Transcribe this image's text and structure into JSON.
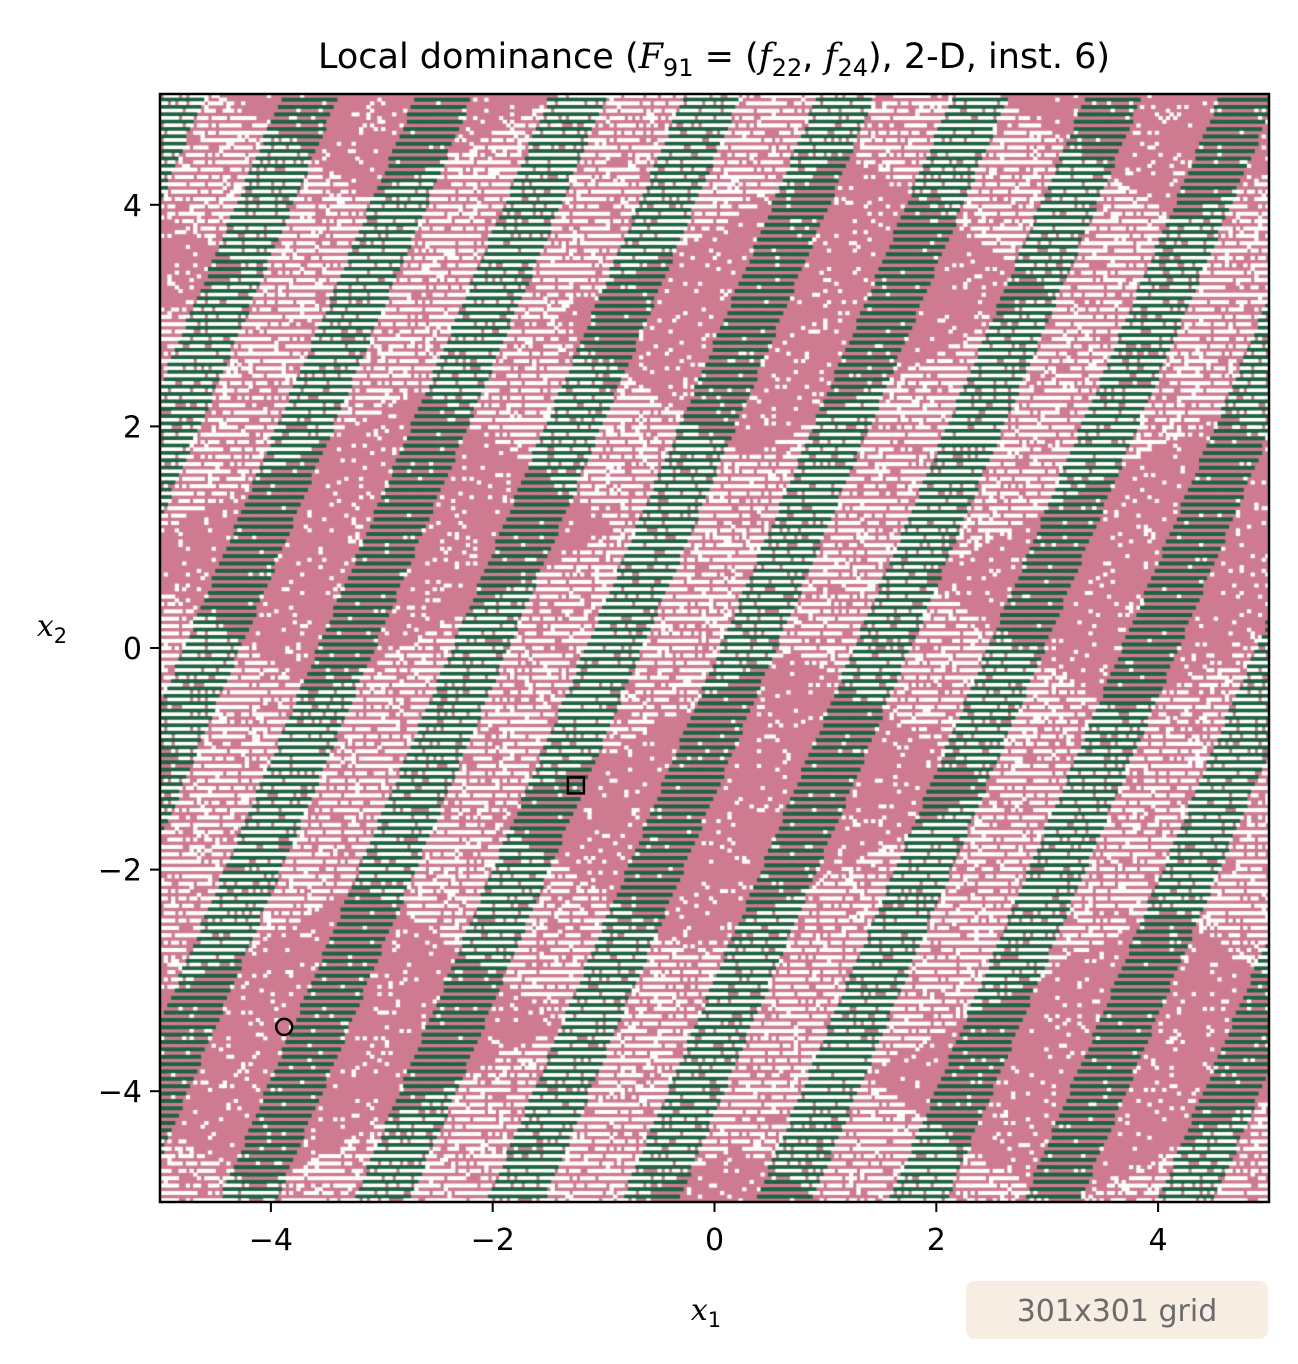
{
  "chart_data": {
    "type": "heatmap",
    "title": {
      "prefix": "Local dominance (",
      "F": "F",
      "F_sub": "91",
      "eq": " = (",
      "f1": "f",
      "f1_sub": "22",
      "comma": ", ",
      "f2": "f",
      "f2_sub": "24",
      "suffix": "), 2-D, inst. 6)"
    },
    "xlabel": {
      "base": "x",
      "sub": "1"
    },
    "ylabel": {
      "base": "x",
      "sub": "2"
    },
    "xlim": [
      -5,
      5
    ],
    "ylim": [
      -5,
      5
    ],
    "xticks": [
      -4,
      -2,
      0,
      2,
      4
    ],
    "yticks": [
      -4,
      -2,
      0,
      2,
      4
    ],
    "xtick_labels": [
      "−4",
      "−2",
      "0",
      "2",
      "4"
    ],
    "ytick_labels": [
      "−4",
      "−2",
      "0",
      "2",
      "4"
    ],
    "grid": false,
    "grid_size": [
      301,
      301
    ],
    "badge": "301x301 grid",
    "classes": [
      {
        "id": 0,
        "color": "#ce7b91"
      },
      {
        "id": 1,
        "color": "#1d6440"
      },
      {
        "id": 2,
        "color": "#ffffff"
      }
    ],
    "markers": [
      {
        "shape": "square",
        "x": -1.25,
        "y": -1.24
      },
      {
        "shape": "circle",
        "x": -3.88,
        "y": -3.42
      }
    ],
    "colors": {
      "badge_bg": "#f8ede3",
      "frame": "#000000"
    }
  }
}
